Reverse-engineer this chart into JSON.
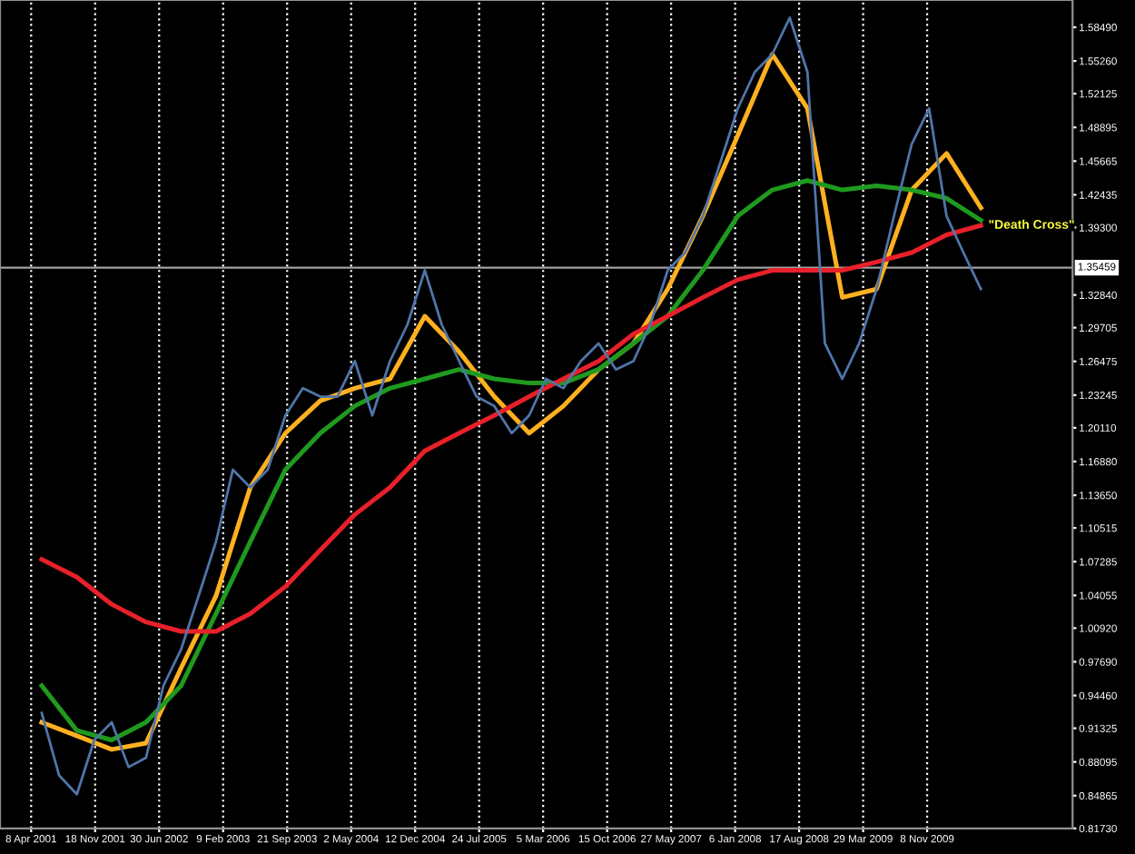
{
  "chart_data": {
    "type": "line",
    "x": [
      "2001-05",
      "2001-07",
      "2001-09",
      "2001-11",
      "2002-01",
      "2002-03",
      "2002-05",
      "2002-07",
      "2002-09",
      "2002-11",
      "2003-01",
      "2003-03",
      "2003-05",
      "2003-07",
      "2003-09",
      "2003-11",
      "2004-01",
      "2004-03",
      "2004-05",
      "2004-07",
      "2004-09",
      "2004-11",
      "2005-01",
      "2005-03",
      "2005-05",
      "2005-07",
      "2005-09",
      "2005-11",
      "2006-01",
      "2006-03",
      "2006-05",
      "2006-07",
      "2006-09",
      "2006-11",
      "2007-01",
      "2007-03",
      "2007-05",
      "2007-07",
      "2007-09",
      "2007-11",
      "2008-01",
      "2008-03",
      "2008-05",
      "2008-07",
      "2008-09",
      "2008-11",
      "2009-01",
      "2009-03",
      "2009-05",
      "2009-07",
      "2009-09",
      "2009-11",
      "2010-01",
      "2010-03",
      "2010-05"
    ],
    "series": [
      {
        "color": "#4f75a8",
        "values": [
          0.928,
          0.868,
          0.85,
          0.902,
          0.919,
          0.876,
          0.885,
          0.954,
          0.989,
          1.04,
          1.092,
          1.161,
          1.144,
          1.161,
          1.213,
          1.239,
          1.231,
          1.231,
          1.265,
          1.213,
          1.265,
          1.3,
          1.352,
          1.3,
          1.265,
          1.231,
          1.222,
          1.196,
          1.213,
          1.248,
          1.239,
          1.265,
          1.282,
          1.257,
          1.265,
          1.3,
          1.352,
          1.369,
          1.404,
          1.455,
          1.507,
          1.542,
          1.559,
          1.594,
          1.542,
          1.282,
          1.248,
          1.282,
          1.334,
          1.404,
          1.473,
          1.507,
          1.404,
          1.369,
          1.334
        ]
      },
      {
        "color": "#ffb020",
        "x": [
          "2001-05",
          "2001-09",
          "2002-01",
          "2002-05",
          "2002-09",
          "2003-01",
          "2003-05",
          "2003-09",
          "2004-01",
          "2004-05",
          "2004-09",
          "2005-01",
          "2005-05",
          "2005-09",
          "2006-01",
          "2006-05",
          "2006-09",
          "2007-01",
          "2007-05",
          "2007-09",
          "2008-01",
          "2008-05",
          "2008-09",
          "2009-01",
          "2009-05",
          "2009-09",
          "2010-01",
          "2010-05"
        ],
        "values": [
          0.919,
          0.906,
          0.893,
          0.899,
          0.971,
          1.04,
          1.144,
          1.196,
          1.227,
          1.239,
          1.248,
          1.308,
          1.274,
          1.231,
          1.196,
          1.222,
          1.257,
          1.282,
          1.334,
          1.404,
          1.481,
          1.559,
          1.507,
          1.326,
          1.334,
          1.429,
          1.464,
          1.412
        ]
      },
      {
        "color": "#1f9a1f",
        "x": [
          "2001-05",
          "2001-09",
          "2002-01",
          "2002-05",
          "2002-09",
          "2003-01",
          "2003-05",
          "2003-09",
          "2004-01",
          "2004-05",
          "2004-09",
          "2005-01",
          "2005-05",
          "2005-09",
          "2006-01",
          "2006-05",
          "2006-09",
          "2007-01",
          "2007-05",
          "2007-09",
          "2008-01",
          "2008-05",
          "2008-09",
          "2009-01",
          "2009-05",
          "2009-09",
          "2010-01",
          "2010-05"
        ],
        "values": [
          0.954,
          0.911,
          0.902,
          0.919,
          0.954,
          1.023,
          1.092,
          1.161,
          1.196,
          1.222,
          1.239,
          1.248,
          1.257,
          1.248,
          1.244,
          1.244,
          1.257,
          1.282,
          1.308,
          1.352,
          1.404,
          1.429,
          1.438,
          1.429,
          1.433,
          1.429,
          1.421,
          1.4
        ]
      },
      {
        "color": "#e8202a",
        "x": [
          "2001-05",
          "2001-09",
          "2002-01",
          "2002-05",
          "2002-09",
          "2003-01",
          "2003-05",
          "2003-09",
          "2004-01",
          "2004-05",
          "2004-09",
          "2005-01",
          "2005-05",
          "2005-09",
          "2006-01",
          "2006-05",
          "2006-09",
          "2007-01",
          "2007-05",
          "2007-09",
          "2008-01",
          "2008-05",
          "2008-09",
          "2009-01",
          "2009-05",
          "2009-09",
          "2010-01",
          "2010-05"
        ],
        "values": [
          1.075,
          1.058,
          1.032,
          1.015,
          1.006,
          1.006,
          1.023,
          1.049,
          1.084,
          1.118,
          1.144,
          1.179,
          1.196,
          1.213,
          1.231,
          1.248,
          1.265,
          1.291,
          1.308,
          1.326,
          1.343,
          1.352,
          1.352,
          1.352,
          1.36,
          1.369,
          1.386,
          1.395
        ]
      }
    ],
    "xlim": [
      "2000-12-20",
      "2011-04-01"
    ],
    "xticks": [
      {
        "value": "2001-04-08",
        "label": "8 Apr 2001"
      },
      {
        "value": "2001-11-18",
        "label": "18 Nov 2001"
      },
      {
        "value": "2002-06-30",
        "label": "30 Jun 2002"
      },
      {
        "value": "2003-02-09",
        "label": "9 Feb 2003"
      },
      {
        "value": "2003-09-21",
        "label": "21 Sep 2003"
      },
      {
        "value": "2004-05-02",
        "label": "2 May 2004"
      },
      {
        "value": "2004-12-12",
        "label": "12 Dec 2004"
      },
      {
        "value": "2005-07-24",
        "label": "24 Jul 2005"
      },
      {
        "value": "2006-03-05",
        "label": "5 Mar 2006"
      },
      {
        "value": "2006-10-15",
        "label": "15 Oct 2006"
      },
      {
        "value": "2007-05-27",
        "label": "27 May 2007"
      },
      {
        "value": "2008-01-06",
        "label": "6 Jan 2008"
      },
      {
        "value": "2008-08-17",
        "label": "17 Aug 2008"
      },
      {
        "value": "2009-03-29",
        "label": "29 Mar 2009"
      },
      {
        "value": "2009-11-08",
        "label": "8 Nov 2009"
      }
    ],
    "ylim": [
      0.8173,
      1.611
    ],
    "yticks": [
      {
        "value": 0.8173,
        "label": "0.81730"
      },
      {
        "value": 0.84865,
        "label": "0.84865"
      },
      {
        "value": 0.88095,
        "label": "0.88095"
      },
      {
        "value": 0.91325,
        "label": "0.91325"
      },
      {
        "value": 0.9446,
        "label": "0.94460"
      },
      {
        "value": 0.9769,
        "label": "0.97690"
      },
      {
        "value": 1.0092,
        "label": "1.00920"
      },
      {
        "value": 1.04055,
        "label": "1.04055"
      },
      {
        "value": 1.07285,
        "label": "1.07285"
      },
      {
        "value": 1.10515,
        "label": "1.10515"
      },
      {
        "value": 1.1365,
        "label": "1.13650"
      },
      {
        "value": 1.1688,
        "label": "1.16880"
      },
      {
        "value": 1.2011,
        "label": "1.20110"
      },
      {
        "value": 1.23245,
        "label": "1.23245"
      },
      {
        "value": 1.26475,
        "label": "1.26475"
      },
      {
        "value": 1.29705,
        "label": "1.29705"
      },
      {
        "value": 1.3284,
        "label": "1.32840"
      },
      {
        "value": 1.393,
        "label": "1.39300"
      },
      {
        "value": 1.42435,
        "label": "1.42435"
      },
      {
        "value": 1.45665,
        "label": "1.45665"
      },
      {
        "value": 1.48895,
        "label": "1.48895"
      },
      {
        "value": 1.52125,
        "label": "1.52125"
      },
      {
        "value": 1.5526,
        "label": "1.55260"
      },
      {
        "value": 1.5849,
        "label": "1.58490"
      }
    ],
    "ref_lines": [
      {
        "axis": "y",
        "value": 1.35459,
        "label": "1.35459",
        "color": "#a0a0a0"
      }
    ],
    "annotations": [
      {
        "text": "\"Death Cross\"",
        "x": "2010-05",
        "y": 1.395
      }
    ],
    "grid": "x",
    "line_style": "solid",
    "marker": "none",
    "legend": false
  }
}
